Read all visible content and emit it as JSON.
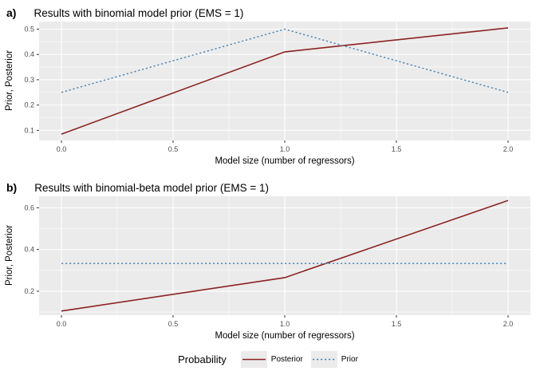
{
  "figure": {
    "background": "#FFFFFF",
    "panel_background": "#EBEBEB",
    "grid_color": "#FFFFFF",
    "tick_mark_color": "#333333",
    "tick_label_color": "#4D4D4D"
  },
  "legend": {
    "title": "Probability",
    "key_background": "#EBEBEB",
    "position": "bottom",
    "items": [
      {
        "label": "Posterior",
        "color": "#8B2222",
        "style": "solid"
      },
      {
        "label": "Prior",
        "color": "#4682B4",
        "style": "dotted"
      }
    ]
  },
  "chart_data": [
    {
      "type": "line",
      "tag": "a)",
      "title": "Results with binomial model prior (EMS = 1)",
      "xlabel": "Model size (number of regressors)",
      "ylabel": "Prior, Posterior",
      "x": [
        0,
        1,
        2
      ],
      "series": [
        {
          "name": "Posterior",
          "color": "#8B2222",
          "dash": "solid",
          "values": [
            0.085,
            0.41,
            0.505
          ]
        },
        {
          "name": "Prior",
          "color": "#4682B4",
          "dash": "dotted",
          "values": [
            0.25,
            0.5,
            0.25
          ]
        }
      ],
      "xlim": [
        -0.1,
        2.1
      ],
      "ylim": [
        0.06,
        0.53
      ],
      "xticks": [
        0.0,
        0.5,
        1.0,
        1.5,
        2.0
      ],
      "xtick_labels": [
        "0.0",
        "0.5",
        "1.0",
        "1.5",
        "2.0"
      ],
      "yticks": [
        0.1,
        0.2,
        0.3,
        0.4,
        0.5
      ],
      "ytick_labels": [
        "0.1",
        "0.2",
        "0.3",
        "0.4",
        "0.5"
      ],
      "grid": true,
      "legend_position": "bottom"
    },
    {
      "type": "line",
      "tag": "b)",
      "title": "Results with binomial-beta model prior (EMS = 1)",
      "xlabel": "Model size (number of regressors)",
      "ylabel": "Prior, Posterior",
      "x": [
        0,
        1,
        2
      ],
      "series": [
        {
          "name": "Posterior",
          "color": "#8B2222",
          "dash": "solid",
          "values": [
            0.105,
            0.265,
            0.635
          ]
        },
        {
          "name": "Prior",
          "color": "#4682B4",
          "dash": "dotted",
          "values": [
            0.333,
            0.333,
            0.333
          ]
        }
      ],
      "xlim": [
        -0.1,
        2.1
      ],
      "ylim": [
        0.085,
        0.655
      ],
      "xticks": [
        0.0,
        0.5,
        1.0,
        1.5,
        2.0
      ],
      "xtick_labels": [
        "0.0",
        "0.5",
        "1.0",
        "1.5",
        "2.0"
      ],
      "yticks": [
        0.2,
        0.4,
        0.6
      ],
      "ytick_labels": [
        "0.2",
        "0.4",
        "0.6"
      ],
      "grid": true,
      "legend_position": "bottom"
    }
  ]
}
